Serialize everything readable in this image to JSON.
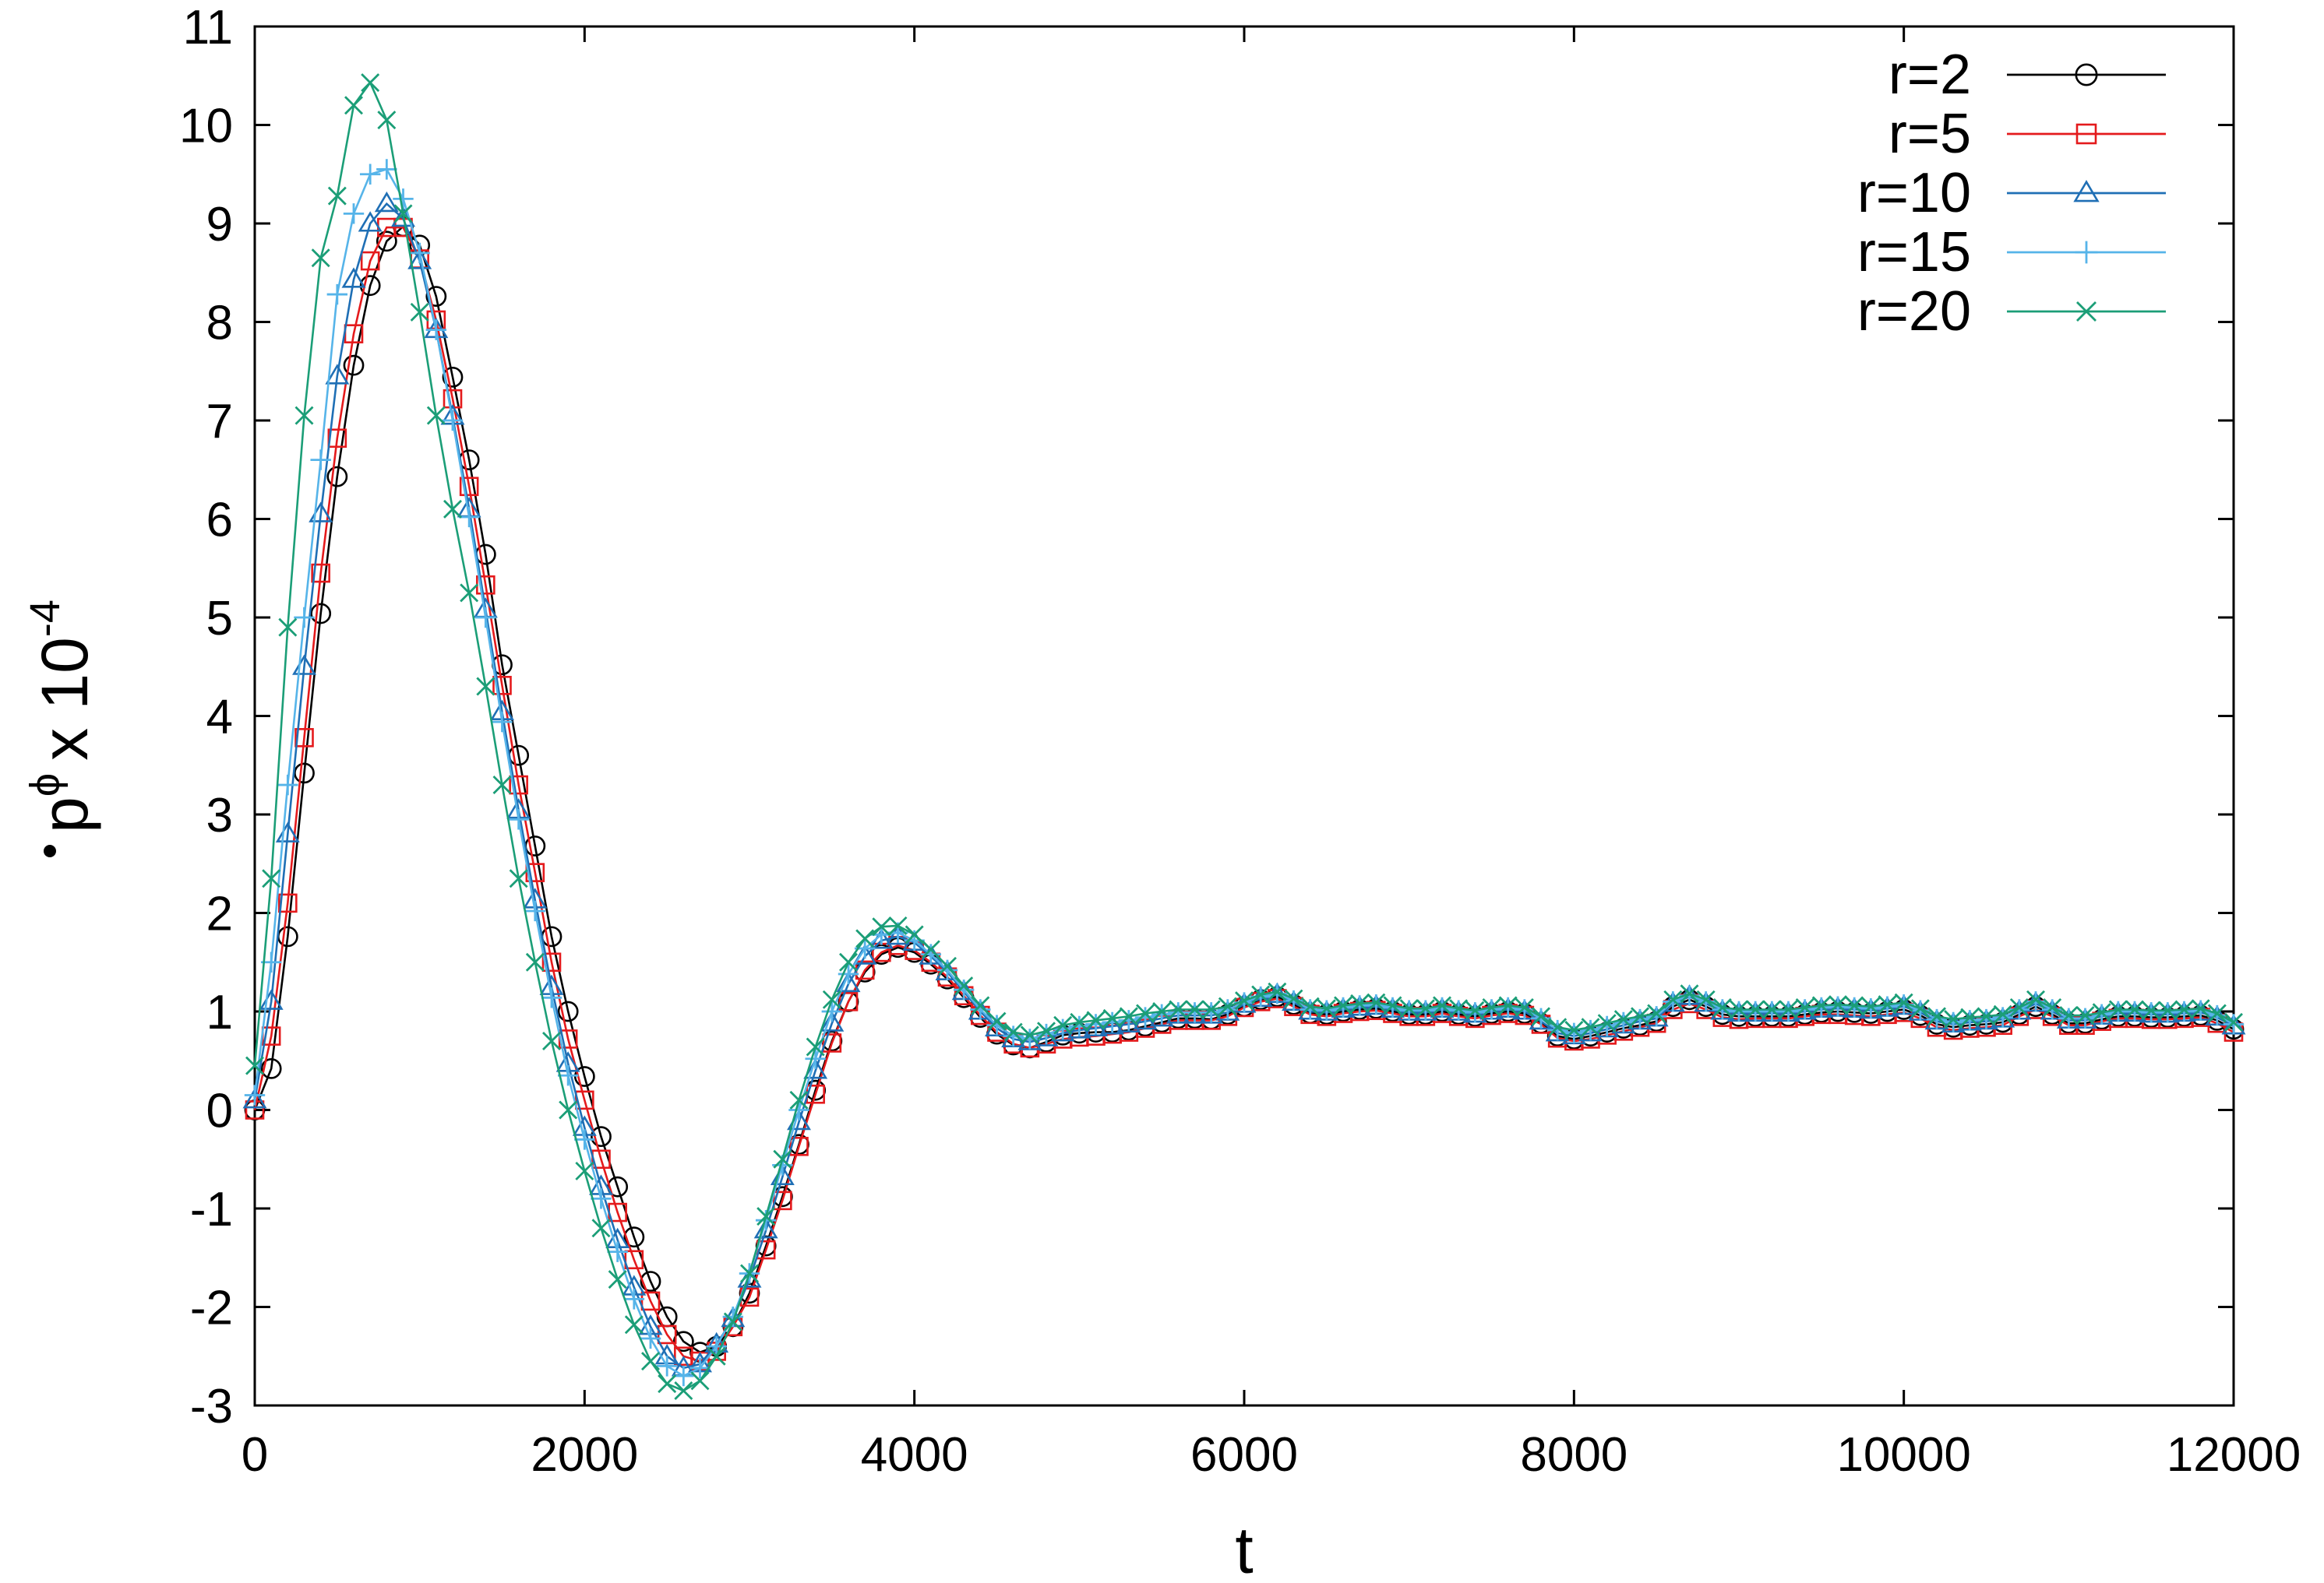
{
  "chart_data": {
    "type": "line",
    "title": "",
    "xlabel": "t",
    "ylabel": {
      "base": "p",
      "superscript": "ϕ",
      "multiplier": "x 10",
      "exponent": "-4"
    },
    "xlim": [
      0,
      12000
    ],
    "ylim": [
      -3,
      11
    ],
    "x_ticks": [
      0,
      2000,
      4000,
      6000,
      8000,
      10000,
      12000
    ],
    "x_tick_labels": [
      "0",
      "2000",
      "4000",
      "6000",
      "8000",
      "10000",
      "12000"
    ],
    "y_ticks": [
      -3,
      -2,
      -1,
      0,
      1,
      2,
      3,
      4,
      5,
      6,
      7,
      8,
      9,
      10,
      11
    ],
    "y_tick_labels": [
      "-3",
      "-2",
      "-1",
      "0",
      "1",
      "2",
      "3",
      "4",
      "5",
      "6",
      "7",
      "8",
      "9",
      "10",
      "11"
    ],
    "grid": false,
    "legend_position": "top-right",
    "x": [
      0,
      100,
      200,
      300,
      400,
      500,
      600,
      700,
      800,
      900,
      1000,
      1100,
      1200,
      1300,
      1400,
      1500,
      1600,
      1700,
      1800,
      1900,
      2000,
      2100,
      2200,
      2300,
      2400,
      2500,
      2600,
      2700,
      2800,
      2900,
      3000,
      3100,
      3200,
      3300,
      3400,
      3500,
      3600,
      3700,
      3800,
      3900,
      4000,
      4100,
      4200,
      4300,
      4400,
      4500,
      4600,
      4700,
      4800,
      4900,
      5000,
      5100,
      5200,
      5300,
      5400,
      5500,
      5600,
      5700,
      5800,
      5900,
      6000,
      6100,
      6200,
      6300,
      6400,
      6500,
      6600,
      6700,
      6800,
      6900,
      7000,
      7100,
      7200,
      7300,
      7400,
      7500,
      7600,
      7700,
      7800,
      7900,
      8000,
      8100,
      8200,
      8300,
      8400,
      8500,
      8600,
      8700,
      8800,
      8900,
      9000,
      9100,
      9200,
      9300,
      9400,
      9500,
      9600,
      9700,
      9800,
      9900,
      10000,
      10100,
      10200,
      10300,
      10400,
      10500,
      10600,
      10700,
      10800,
      10900,
      11000,
      11100,
      11200,
      11300,
      11400,
      11500,
      11600,
      11700,
      11800,
      11900,
      12000
    ],
    "series": [
      {
        "name": "r=2",
        "color": "#000000",
        "marker": "circle",
        "values": [
          0.0,
          0.42,
          1.76,
          3.42,
          5.04,
          6.43,
          7.56,
          8.37,
          8.82,
          8.97,
          8.78,
          8.26,
          7.44,
          6.6,
          5.64,
          4.52,
          3.6,
          2.68,
          1.76,
          1.0,
          0.34,
          -0.27,
          -0.78,
          -1.29,
          -1.74,
          -2.1,
          -2.35,
          -2.46,
          -2.4,
          -2.2,
          -1.86,
          -1.38,
          -0.88,
          -0.35,
          0.2,
          0.7,
          1.1,
          1.4,
          1.58,
          1.65,
          1.6,
          1.48,
          1.33,
          1.14,
          0.94,
          0.77,
          0.66,
          0.63,
          0.69,
          0.76,
          0.78,
          0.79,
          0.79,
          0.81,
          0.85,
          0.89,
          0.93,
          0.93,
          0.92,
          0.97,
          1.05,
          1.12,
          1.15,
          1.07,
          0.98,
          0.97,
          1.0,
          1.02,
          1.03,
          1.0,
          0.97,
          0.97,
          1.0,
          0.97,
          0.95,
          0.98,
          1.0,
          0.98,
          0.88,
          0.75,
          0.72,
          0.75,
          0.79,
          0.83,
          0.86,
          0.9,
          1.05,
          1.12,
          1.05,
          0.97,
          0.95,
          0.95,
          0.95,
          0.95,
          0.97,
          0.99,
          1.0,
          0.99,
          0.98,
          1.0,
          1.02,
          0.96,
          0.87,
          0.84,
          0.86,
          0.87,
          0.89,
          0.97,
          1.05,
          0.97,
          0.88,
          0.88,
          0.92,
          0.95,
          0.95,
          0.94,
          0.94,
          0.95,
          0.96,
          0.91,
          0.82
        ]
      },
      {
        "name": "r=5",
        "color": "#e41a1c",
        "marker": "square",
        "values": [
          0.0,
          0.75,
          2.1,
          3.78,
          5.45,
          6.82,
          7.88,
          8.62,
          8.96,
          8.96,
          8.64,
          8.02,
          7.22,
          6.33,
          5.33,
          4.31,
          3.3,
          2.41,
          1.5,
          0.72,
          0.1,
          -0.5,
          -1.04,
          -1.52,
          -1.94,
          -2.28,
          -2.5,
          -2.55,
          -2.45,
          -2.2,
          -1.9,
          -1.42,
          -0.92,
          -0.37,
          0.16,
          0.68,
          1.1,
          1.42,
          1.6,
          1.67,
          1.62,
          1.5,
          1.35,
          1.16,
          0.96,
          0.79,
          0.67,
          0.63,
          0.67,
          0.72,
          0.74,
          0.75,
          0.77,
          0.79,
          0.83,
          0.87,
          0.91,
          0.91,
          0.91,
          0.95,
          1.04,
          1.1,
          1.13,
          1.05,
          0.97,
          0.95,
          0.98,
          1.0,
          1.01,
          0.98,
          0.95,
          0.95,
          0.98,
          0.95,
          0.93,
          0.96,
          0.98,
          0.96,
          0.87,
          0.73,
          0.7,
          0.72,
          0.76,
          0.8,
          0.84,
          0.88,
          1.02,
          1.08,
          1.02,
          0.94,
          0.92,
          0.93,
          0.93,
          0.93,
          0.95,
          0.97,
          0.97,
          0.96,
          0.95,
          0.97,
          0.99,
          0.93,
          0.84,
          0.81,
          0.83,
          0.84,
          0.86,
          0.95,
          1.02,
          0.95,
          0.86,
          0.86,
          0.9,
          0.93,
          0.93,
          0.92,
          0.92,
          0.93,
          0.94,
          0.88,
          0.79
        ]
      },
      {
        "name": "r=10",
        "color": "#1f6fb5",
        "marker": "triangle",
        "values": [
          0.1,
          1.1,
          2.8,
          4.5,
          6.05,
          7.45,
          8.43,
          9.0,
          9.2,
          9.05,
          8.62,
          7.92,
          7.04,
          6.1,
          5.08,
          4.04,
          3.04,
          2.13,
          1.25,
          0.47,
          -0.18,
          -0.78,
          -1.32,
          -1.8,
          -2.2,
          -2.5,
          -2.62,
          -2.58,
          -2.38,
          -2.12,
          -1.72,
          -1.22,
          -0.68,
          -0.12,
          0.4,
          0.88,
          1.28,
          1.56,
          1.72,
          1.76,
          1.7,
          1.56,
          1.4,
          1.2,
          1.0,
          0.83,
          0.72,
          0.69,
          0.73,
          0.78,
          0.81,
          0.83,
          0.85,
          0.87,
          0.9,
          0.93,
          0.96,
          0.96,
          0.96,
          0.99,
          1.07,
          1.13,
          1.17,
          1.09,
          1.0,
          0.99,
          1.02,
          1.04,
          1.05,
          1.02,
          0.99,
          0.99,
          1.02,
          0.99,
          0.97,
          1.0,
          1.02,
          1.0,
          0.9,
          0.78,
          0.75,
          0.78,
          0.82,
          0.86,
          0.9,
          0.93,
          1.08,
          1.15,
          1.08,
          1.0,
          0.98,
          0.98,
          0.98,
          0.98,
          1.0,
          1.02,
          1.03,
          1.02,
          1.01,
          1.03,
          1.05,
          0.99,
          0.9,
          0.87,
          0.89,
          0.9,
          0.92,
          1.0,
          1.08,
          1.0,
          0.91,
          0.91,
          0.95,
          0.98,
          0.98,
          0.97,
          0.97,
          0.98,
          0.99,
          0.94,
          0.85
        ]
      },
      {
        "name": "r=15",
        "color": "#56b4e9",
        "marker": "plus",
        "values": [
          0.15,
          1.5,
          3.3,
          5.0,
          6.6,
          8.28,
          9.1,
          9.5,
          9.55,
          9.25,
          8.7,
          7.92,
          7.0,
          6.02,
          5.0,
          3.94,
          2.95,
          2.02,
          1.14,
          0.35,
          -0.3,
          -0.9,
          -1.44,
          -1.92,
          -2.32,
          -2.6,
          -2.7,
          -2.62,
          -2.4,
          -2.1,
          -1.66,
          -1.12,
          -0.56,
          0.0,
          0.52,
          1.0,
          1.38,
          1.64,
          1.78,
          1.8,
          1.72,
          1.58,
          1.42,
          1.22,
          1.02,
          0.86,
          0.75,
          0.72,
          0.77,
          0.82,
          0.85,
          0.87,
          0.89,
          0.91,
          0.94,
          0.97,
          0.99,
          0.99,
          0.99,
          1.02,
          1.09,
          1.15,
          1.18,
          1.11,
          1.02,
          1.01,
          1.04,
          1.06,
          1.07,
          1.04,
          1.01,
          1.01,
          1.04,
          1.01,
          0.99,
          1.02,
          1.04,
          1.02,
          0.93,
          0.81,
          0.78,
          0.81,
          0.85,
          0.89,
          0.92,
          0.95,
          1.1,
          1.16,
          1.1,
          1.02,
          1.0,
          1.0,
          1.0,
          1.0,
          1.02,
          1.04,
          1.05,
          1.04,
          1.03,
          1.05,
          1.07,
          1.01,
          0.92,
          0.89,
          0.91,
          0.92,
          0.94,
          1.02,
          1.1,
          1.02,
          0.93,
          0.93,
          0.97,
          1.0,
          1.0,
          0.99,
          0.99,
          1.0,
          1.01,
          0.96,
          0.87
        ]
      },
      {
        "name": "r=20",
        "color": "#1b9e77",
        "marker": "cross",
        "values": [
          0.45,
          2.35,
          4.9,
          7.05,
          8.65,
          9.28,
          10.2,
          10.43,
          10.05,
          9.1,
          8.1,
          7.05,
          6.1,
          5.25,
          4.3,
          3.3,
          2.35,
          1.5,
          0.7,
          0.0,
          -0.62,
          -1.2,
          -1.72,
          -2.18,
          -2.55,
          -2.78,
          -2.85,
          -2.75,
          -2.5,
          -2.15,
          -1.66,
          -1.08,
          -0.5,
          0.1,
          0.64,
          1.12,
          1.5,
          1.74,
          1.86,
          1.87,
          1.78,
          1.63,
          1.46,
          1.26,
          1.06,
          0.9,
          0.79,
          0.76,
          0.8,
          0.86,
          0.89,
          0.91,
          0.93,
          0.95,
          0.98,
          1.0,
          1.02,
          1.02,
          1.02,
          1.05,
          1.11,
          1.17,
          1.2,
          1.13,
          1.05,
          1.03,
          1.06,
          1.08,
          1.09,
          1.06,
          1.03,
          1.03,
          1.06,
          1.03,
          1.01,
          1.04,
          1.06,
          1.04,
          0.95,
          0.84,
          0.81,
          0.84,
          0.88,
          0.92,
          0.95,
          0.98,
          1.12,
          1.18,
          1.12,
          1.04,
          1.02,
          1.02,
          1.02,
          1.02,
          1.04,
          1.06,
          1.07,
          1.06,
          1.05,
          1.07,
          1.09,
          1.03,
          0.95,
          0.92,
          0.94,
          0.95,
          0.97,
          1.04,
          1.12,
          1.04,
          0.96,
          0.96,
          0.99,
          1.02,
          1.02,
          1.01,
          1.01,
          1.02,
          1.03,
          0.98,
          0.89
        ]
      }
    ]
  }
}
